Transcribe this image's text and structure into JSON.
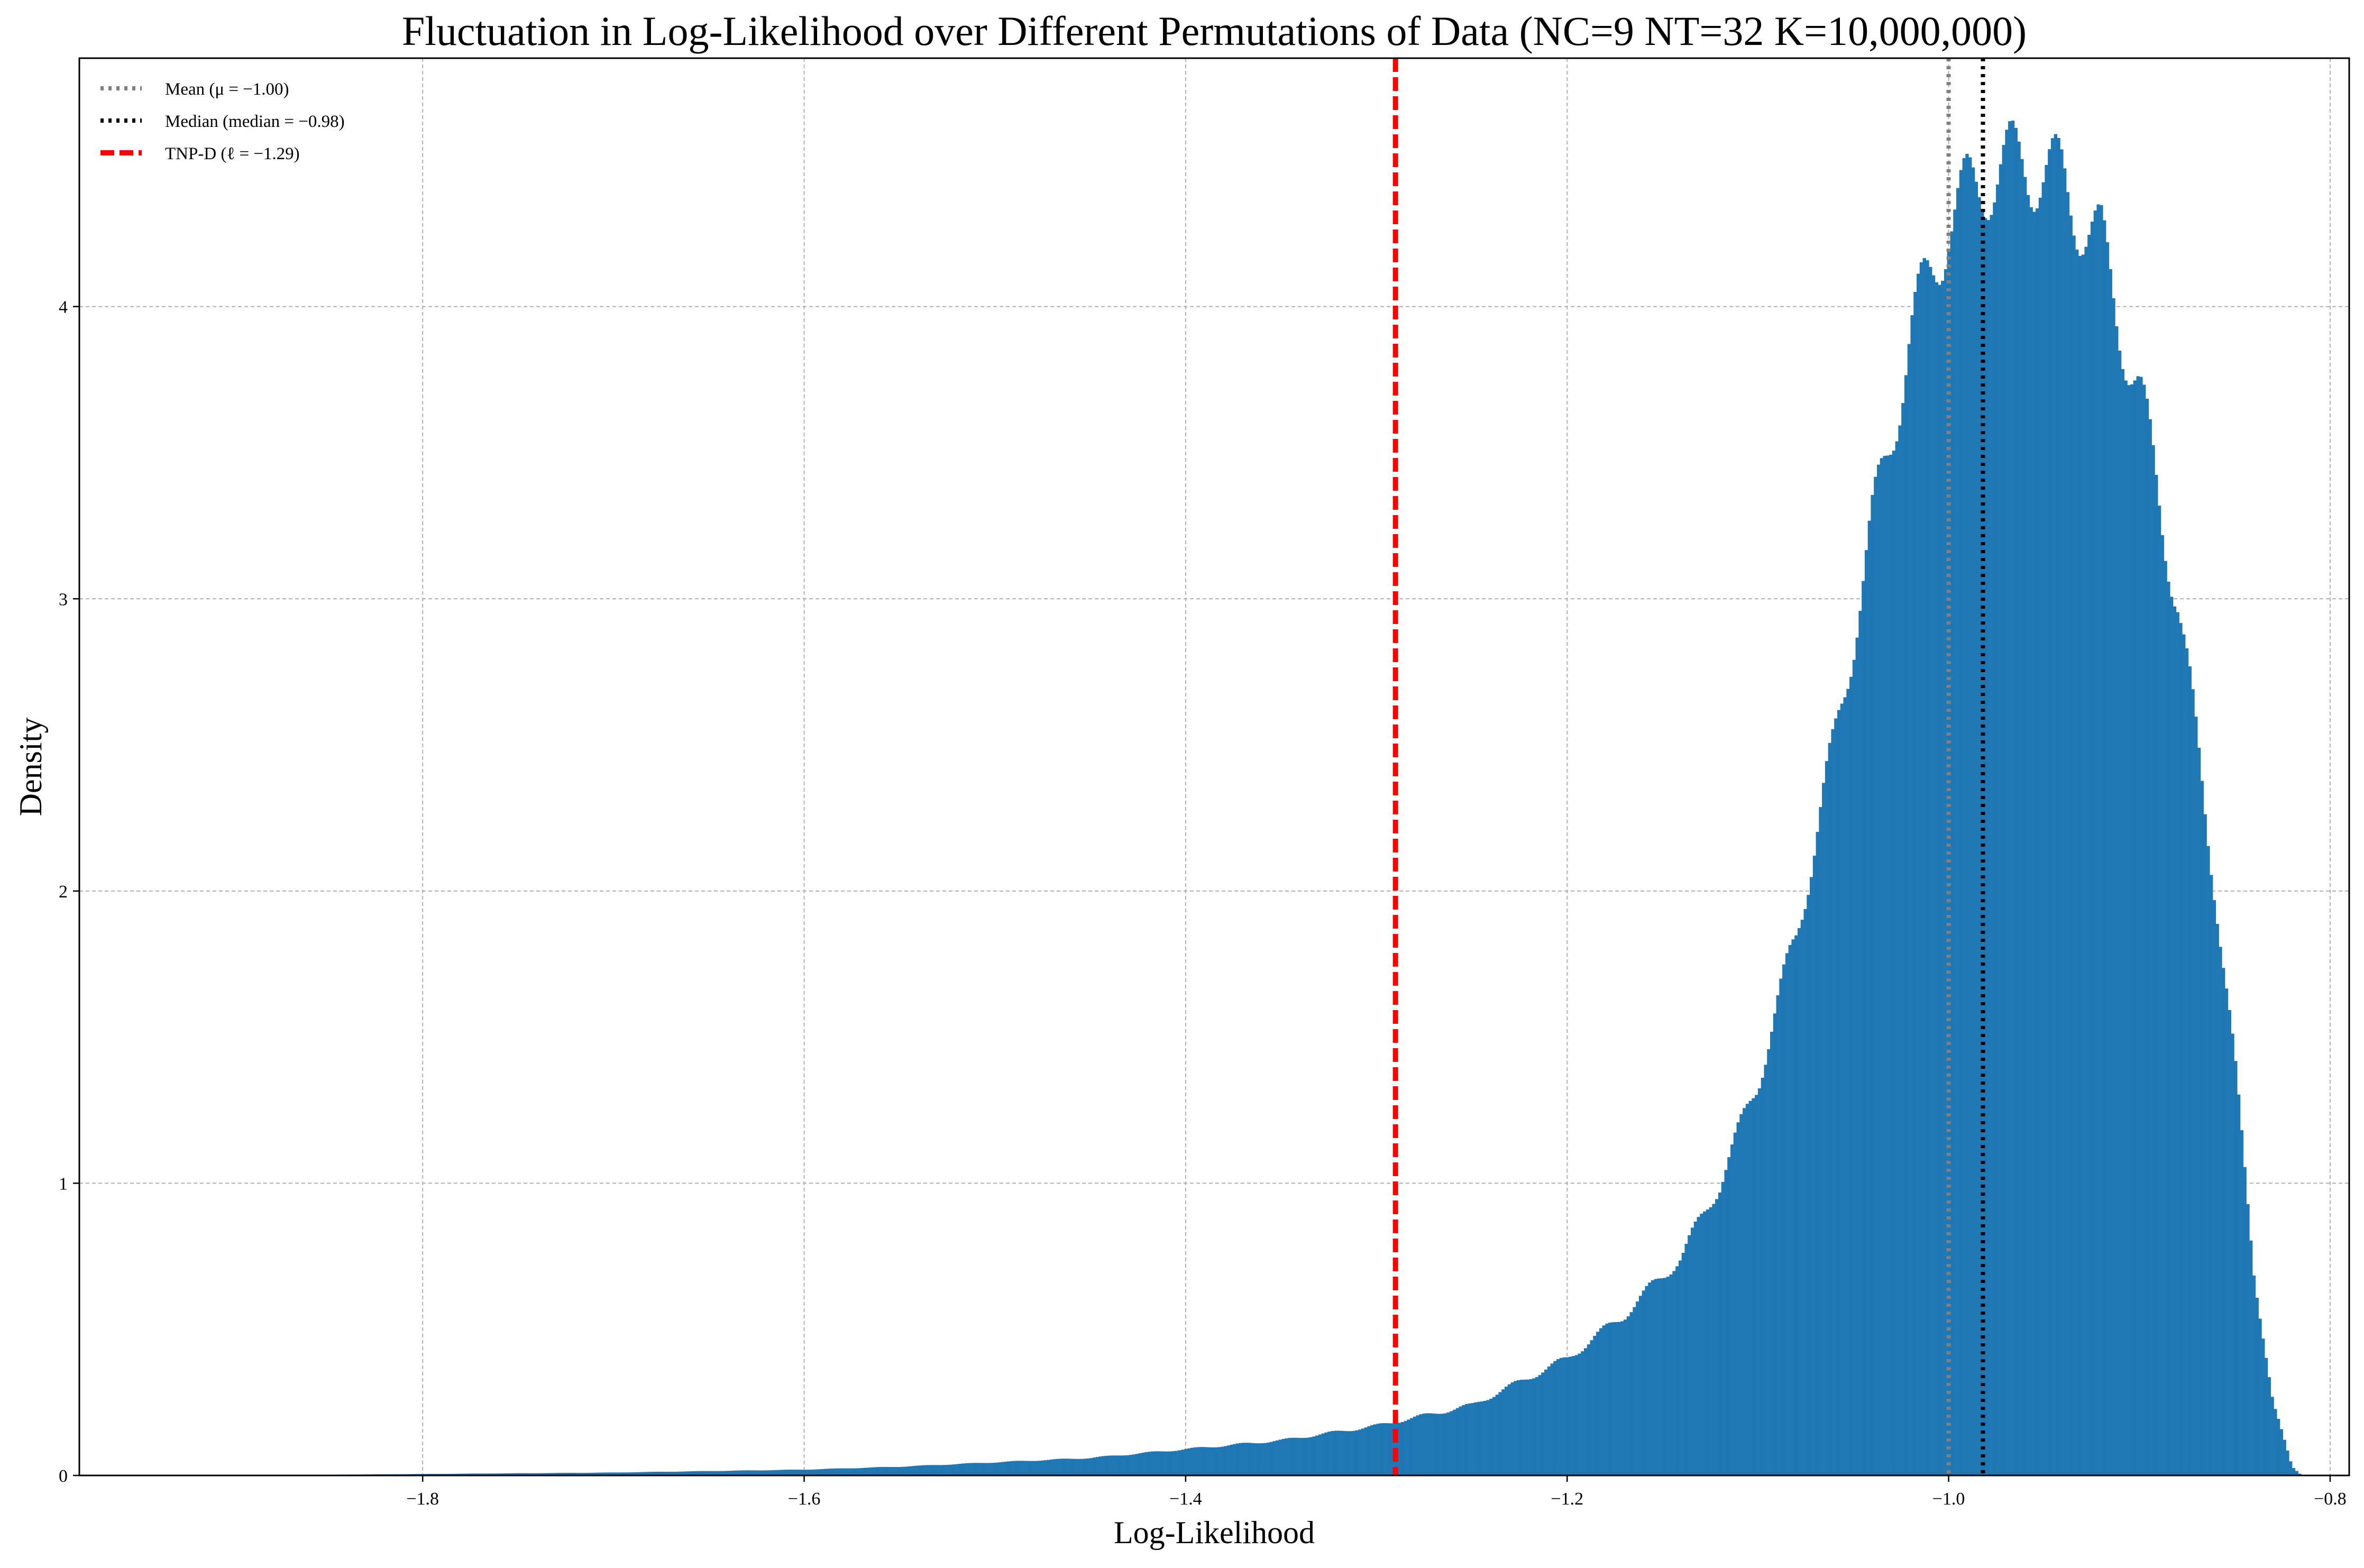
{
  "chart_data": {
    "type": "bar",
    "title": "Fluctuation in Log-Likelihood over Different Permutations of Data (NC=9 NT=32 K=10,000,000)",
    "xlabel": "Log-Likelihood",
    "ylabel": "Density",
    "xlim": [
      -1.98,
      -0.79
    ],
    "ylim": [
      0,
      4.85
    ],
    "x_ticks": [
      -1.8,
      -1.6,
      -1.4,
      -1.2,
      -1.0,
      -0.8
    ],
    "x_tick_labels": [
      "−1.8",
      "−1.6",
      "−1.4",
      "−1.2",
      "−1.0",
      "−0.8"
    ],
    "y_ticks": [
      0,
      1,
      2,
      3,
      4
    ],
    "y_tick_labels": [
      "0",
      "1",
      "2",
      "3",
      "4"
    ],
    "grid": true,
    "legend_position": "top-left",
    "histogram_color": "#1f77b4",
    "histogram_bins": {
      "x": [
        -1.9,
        -1.8,
        -1.7,
        -1.6,
        -1.55,
        -1.5,
        -1.45,
        -1.4,
        -1.35,
        -1.3,
        -1.25,
        -1.2,
        -1.17,
        -1.14,
        -1.12,
        -1.1,
        -1.08,
        -1.06,
        -1.04,
        -1.02,
        -1.0,
        -0.98,
        -0.96,
        -0.94,
        -0.92,
        -0.9,
        -0.88,
        -0.86,
        -0.85,
        -0.84,
        -0.83,
        -0.82,
        -0.815
      ],
      "density": [
        0.0,
        0.005,
        0.01,
        0.02,
        0.03,
        0.045,
        0.06,
        0.09,
        0.12,
        0.17,
        0.24,
        0.4,
        0.55,
        0.75,
        1.0,
        1.35,
        1.85,
        2.5,
        3.25,
        3.9,
        4.3,
        4.45,
        4.5,
        4.42,
        4.2,
        3.7,
        3.0,
        2.0,
        1.4,
        0.7,
        0.25,
        0.03,
        0.0
      ]
    },
    "reference_lines": [
      {
        "name": "Mean (μ = −1.00)",
        "x": -1.0,
        "color": "#808080",
        "style": "dotted"
      },
      {
        "name": "Median (median = −0.98)",
        "x": -0.982,
        "color": "#000000",
        "style": "dotted"
      },
      {
        "name": "TNP-D (ℓ = −1.29)",
        "x": -1.29,
        "color": "#ff0000",
        "style": "dashed"
      }
    ]
  }
}
